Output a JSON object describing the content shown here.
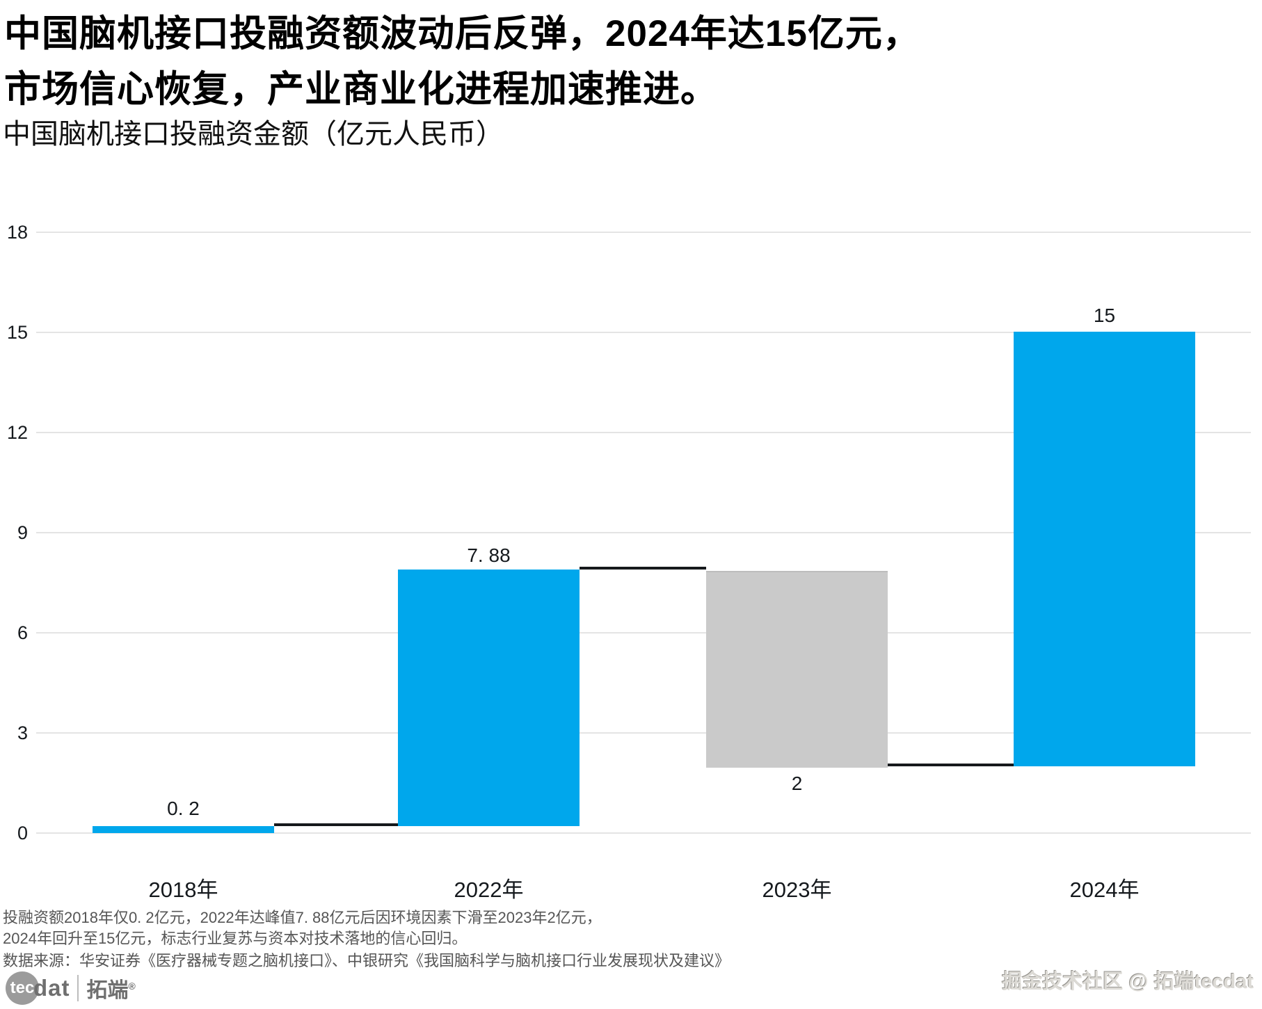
{
  "title": {
    "line1": "中国脑机接口投融资额波动后反弹，2024年达15亿元，",
    "line2": "市场信心恢复，产业商业化进程加速推进。",
    "subtitle": "中国脑机接口投融资金额（亿元人民币）"
  },
  "chart_data": {
    "type": "bar",
    "subtype": "waterfall",
    "title": "中国脑机接口投融资金额（亿元人民币）",
    "categories": [
      "2018年",
      "2022年",
      "2023年",
      "2024年"
    ],
    "values": [
      0.2,
      7.88,
      2,
      15
    ],
    "bar_segments": [
      {
        "category": "2018年",
        "from": 0,
        "to": 0.2,
        "value": 0.2,
        "label": "0. 2",
        "label_position": "above",
        "color": "#00a7ec"
      },
      {
        "category": "2022年",
        "from": 0.2,
        "to": 7.88,
        "value": 7.88,
        "label": "7. 88",
        "label_position": "above",
        "color": "#00a7ec"
      },
      {
        "category": "2023年",
        "from": 2,
        "to": 7.88,
        "value": 2,
        "label": "2",
        "label_position": "below",
        "color": "#cacaca"
      },
      {
        "category": "2024年",
        "from": 2,
        "to": 15,
        "value": 15,
        "label": "15",
        "label_position": "above",
        "color": "#00a7ec"
      }
    ],
    "connectors": [
      {
        "between": [
          "2018年",
          "2022年"
        ],
        "level": 0.2
      },
      {
        "between": [
          "2022年",
          "2023年"
        ],
        "level": 7.88
      },
      {
        "between": [
          "2023年",
          "2024年"
        ],
        "level": 2
      }
    ],
    "yticks_display": [
      "18",
      "15",
      "12",
      "9",
      "6",
      "3",
      "0"
    ],
    "ylim": [
      0,
      18
    ],
    "ytick_step": 3,
    "grid": true,
    "legend": "none",
    "xlabel": "",
    "ylabel": ""
  },
  "footer": {
    "line1": "投融资额2018年仅0. 2亿元，2022年达峰值7. 88亿元后因环境因素下滑至2023年2亿元，",
    "line2": "2024年回升至15亿元，标志行业复苏与资本对技术落地的信心回归。",
    "line3": "数据来源：华安证券《医疗器械专题之脑机接口》、中银研究《我国脑科学与脑机接口行业发展现状及建议》"
  },
  "branding": {
    "logo_tec": "tec",
    "logo_dat": "dat",
    "logo_cn": "拓端",
    "logo_reg": "®",
    "watermark": "掘金技术社区 @ 拓端tecdat"
  },
  "colors": {
    "bar_blue": "#00a7ec",
    "bar_gray": "#cacaca",
    "connector": "#16191c",
    "gridline": "#e4e4e4",
    "text_primary": "#000000",
    "text_secondary": "#555555",
    "watermark_gray": "#dcdad5"
  }
}
